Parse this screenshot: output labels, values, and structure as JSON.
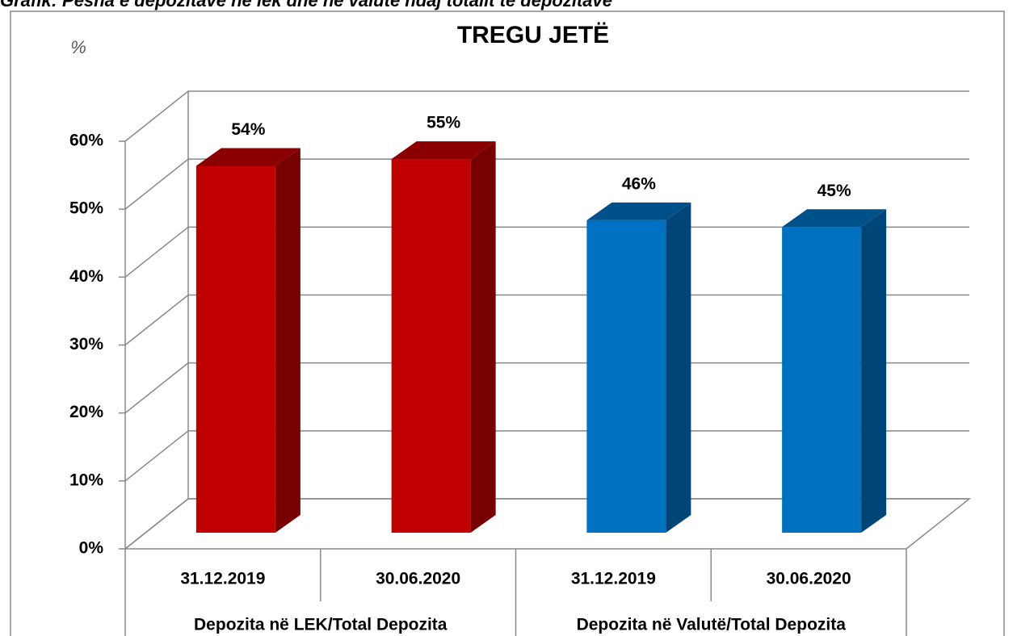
{
  "chart_data": {
    "type": "bar3d",
    "caption": "Grafik: Pesha e depozitave në lek dhe në valutë ndaj totalit të depozitave",
    "title": "TREGU JETË",
    "y_label": "%",
    "categories": [
      "31.12.2019",
      "30.06.2020",
      "31.12.2019",
      "30.06.2020"
    ],
    "groups": [
      "Depozita në LEK/Total Depozita",
      "Depozita në Valutë/Total Depozita"
    ],
    "series": [
      {
        "name": null,
        "colors": [
          "#c00000",
          "#c00000",
          "#0070c0",
          "#0070c0"
        ],
        "values": [
          54,
          55,
          46,
          45
        ],
        "value_labels": [
          "54%",
          "55%",
          "46%",
          "45%"
        ]
      }
    ],
    "ylim": [
      0,
      60
    ],
    "yticks": [
      {
        "value": 0,
        "label": "0%"
      },
      {
        "value": 10,
        "label": "10%"
      },
      {
        "value": 20,
        "label": "20%"
      },
      {
        "value": 30,
        "label": "30%"
      },
      {
        "value": 40,
        "label": "40%"
      },
      {
        "value": 50,
        "label": "50%"
      },
      {
        "value": 60,
        "label": "60%"
      }
    ],
    "grid": true
  }
}
